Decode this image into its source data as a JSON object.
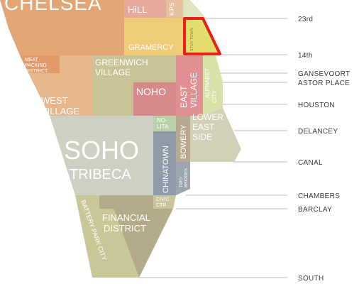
{
  "map": {
    "neighborhoods": [
      {
        "id": "chelsea",
        "label_lines": [
          "CHELSEA"
        ]
      },
      {
        "id": "murray-hill",
        "label_lines": [
          "HILL"
        ]
      },
      {
        "id": "kips-bay",
        "label_lines": [
          "KIPS"
        ]
      },
      {
        "id": "gramercy",
        "label_lines": [
          "GRAMERCY"
        ]
      },
      {
        "id": "stuy-town",
        "label_lines": [
          "STUY TOWN"
        ]
      },
      {
        "id": "meatpacking",
        "label_lines": [
          "MEAT",
          "PACKING",
          "DISTRICT"
        ]
      },
      {
        "id": "greenwich-village",
        "label_lines": [
          "GREENWICH",
          "VILLAGE"
        ]
      },
      {
        "id": "west-village",
        "label_lines": [
          "WEST",
          "VILLAGE"
        ]
      },
      {
        "id": "noho",
        "label_lines": [
          "NOHO"
        ]
      },
      {
        "id": "east-village",
        "label_lines": [
          "EAST",
          "VILLAGE"
        ]
      },
      {
        "id": "alphabet-city",
        "label_lines": [
          "ALPHABET",
          "CITY"
        ]
      },
      {
        "id": "nolita",
        "label_lines": [
          "NO-",
          "LITA"
        ]
      },
      {
        "id": "lower-east-side",
        "label_lines": [
          "LOWER",
          "EAST",
          "SIDE"
        ]
      },
      {
        "id": "soho",
        "label_lines": [
          "SOHO"
        ]
      },
      {
        "id": "tribeca",
        "label_lines": [
          "TRIBECA"
        ]
      },
      {
        "id": "chinatown",
        "label_lines": [
          "CHINATOWN"
        ]
      },
      {
        "id": "bowery",
        "label_lines": [
          "BOWERY"
        ]
      },
      {
        "id": "two-bridges",
        "label_lines": [
          "TWO",
          "BRIDGES"
        ]
      },
      {
        "id": "civic-center",
        "label_lines": [
          "CIVIC",
          "CTR"
        ]
      },
      {
        "id": "financial-district",
        "label_lines": [
          "FINANCIAL",
          "DISTRICT"
        ]
      },
      {
        "id": "battery-park-city",
        "label_lines": [
          "BATTERY PARK CITY"
        ]
      }
    ],
    "streets": [
      "23rd",
      "14th",
      "GANSEVOORT",
      "ASTOR PLACE",
      "HOUSTON",
      "DELANCEY",
      "CANAL",
      "CHAMBERS",
      "BARCLAY",
      "SOUTH"
    ],
    "highlight": {
      "neighborhood": "stuy-town",
      "color": "#e8201c"
    },
    "colors": {
      "chelsea": "#e3a574",
      "gramercy": "#eecc78",
      "highlight_fill": "#e4dc6c",
      "meatpacking": "#e39a6a",
      "greenwich": "#c8c498",
      "west_village": "#e6b78a",
      "noho": "#d68a8c",
      "east_village": "#e08f92",
      "alphabet": "#d8e2a8",
      "nolita": "#b9d1a8",
      "les": "#d1d1b7",
      "soho": "#cfd0c4",
      "chinatown": "#8f9ba8",
      "bowery": "#b7a98f",
      "two_bridges": "#9ca4ad",
      "civic": "#c8c49c",
      "fidi": "#b3ab8a",
      "bpc": "#c8c798",
      "murray": "#e6a99e",
      "kips": "#e6c09e",
      "street_line": "#b8b8b8"
    }
  }
}
